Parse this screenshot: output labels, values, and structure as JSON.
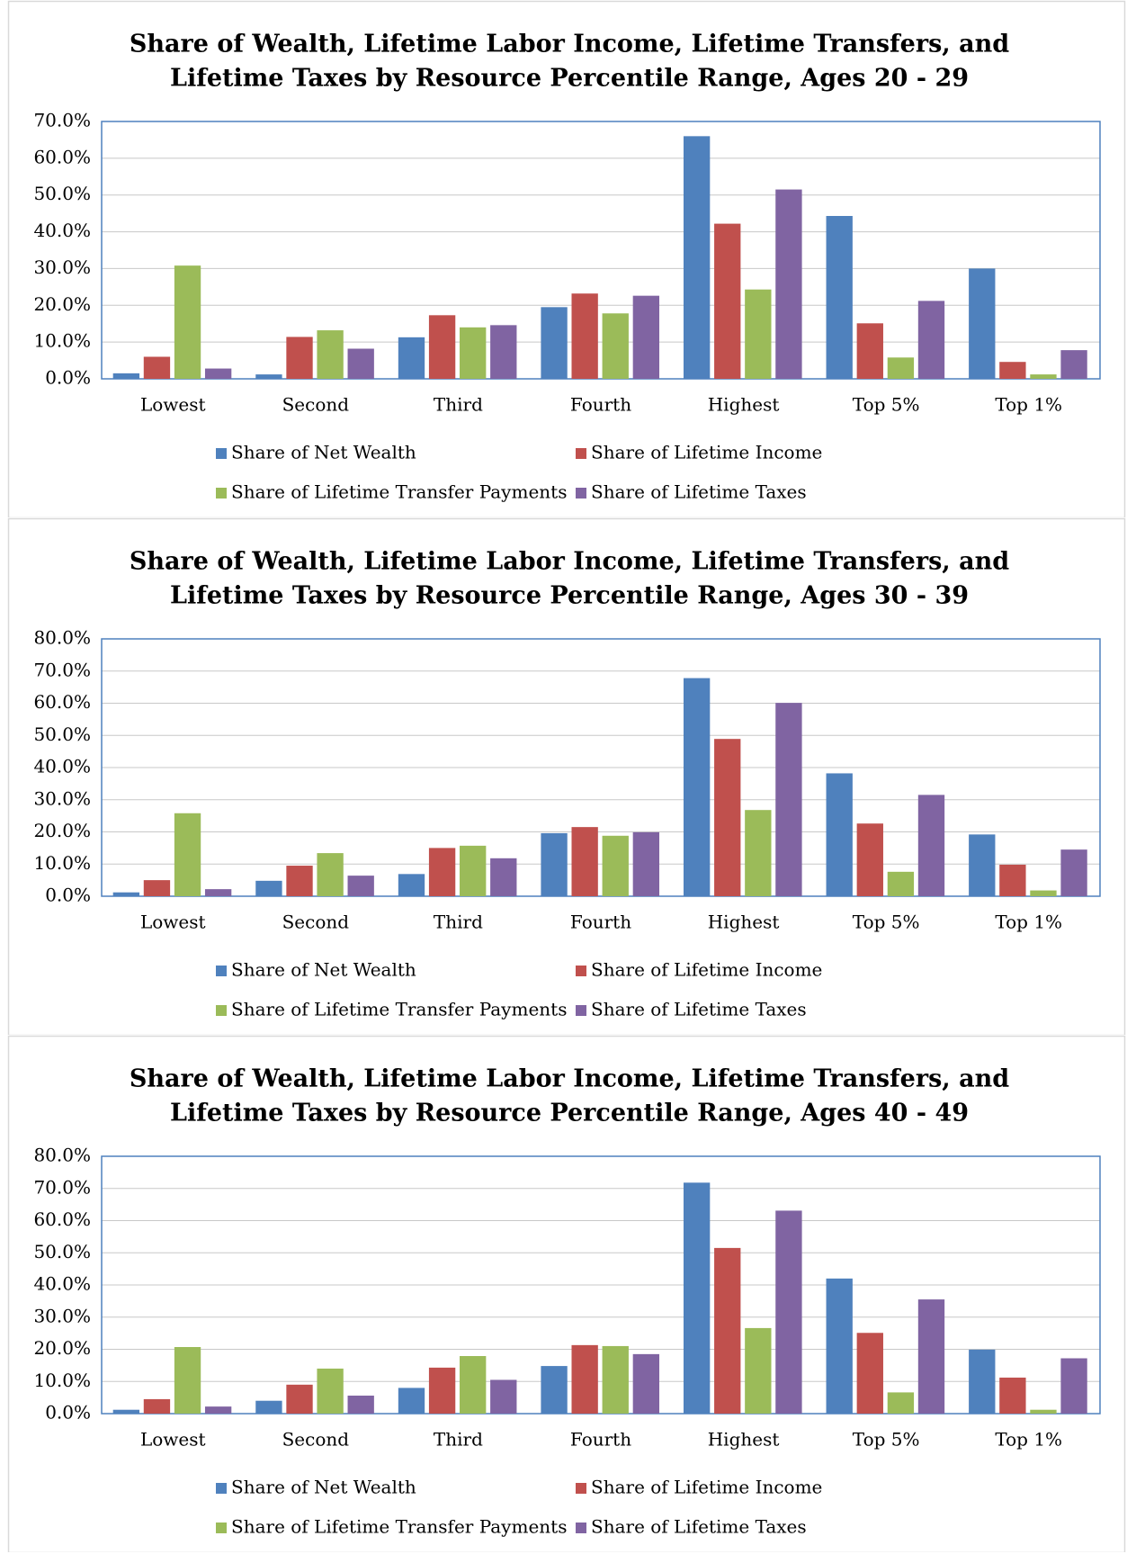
{
  "chart_data": [
    {
      "type": "bar",
      "title": [
        "Share of Wealth, Lifetime Labor Income, Lifetime Transfers, and",
        "Lifetime Taxes by Resource Percentile Range, Ages 20 - 29"
      ],
      "categories": [
        "Lowest",
        "Second",
        "Third",
        "Fourth",
        "Highest",
        "Top 5%",
        "Top 1%"
      ],
      "series": [
        {
          "name": "Share of Net Wealth",
          "color": "#4f81bd",
          "values": [
            1.5,
            1.2,
            11.3,
            19.5,
            66,
            44.3,
            30
          ]
        },
        {
          "name": "Share of Lifetime Income",
          "color": "#c0504d",
          "values": [
            6,
            11.4,
            17.3,
            23.2,
            42.2,
            15.1,
            4.6
          ]
        },
        {
          "name": "Share of Lifetime Transfer Payments",
          "color": "#9bbb59",
          "values": [
            30.8,
            13.2,
            14,
            17.8,
            24.3,
            5.8,
            1.2
          ]
        },
        {
          "name": "Share of Lifetime Taxes",
          "color": "#8064a2",
          "values": [
            2.8,
            8.2,
            14.6,
            22.6,
            51.5,
            21.2,
            7.8
          ]
        }
      ],
      "ylim": [
        0,
        70
      ],
      "yticks": [
        {
          "value": 0,
          "label": "0.0%"
        },
        {
          "value": 10,
          "label": "10.0%"
        },
        {
          "value": 20,
          "label": "20.0%"
        },
        {
          "value": 30,
          "label": "30.0%"
        },
        {
          "value": 40,
          "label": "40.0%"
        },
        {
          "value": 50,
          "label": "50.0%"
        },
        {
          "value": 60,
          "label": "60.0%"
        },
        {
          "value": 70,
          "label": "70.0%"
        }
      ],
      "grid": true,
      "legend": "bottom"
    },
    {
      "type": "bar",
      "title": [
        "Share of Wealth, Lifetime Labor Income, Lifetime Transfers, and",
        "Lifetime Taxes by Resource Percentile Range, Ages 30 - 39"
      ],
      "categories": [
        "Lowest",
        "Second",
        "Third",
        "Fourth",
        "Highest",
        "Top 5%",
        "Top 1%"
      ],
      "series": [
        {
          "name": "Share of Net Wealth",
          "color": "#4f81bd",
          "values": [
            1.2,
            4.8,
            6.9,
            19.6,
            67.8,
            38.2,
            19.2
          ]
        },
        {
          "name": "Share of Lifetime Income",
          "color": "#c0504d",
          "values": [
            5,
            9.5,
            15,
            21.5,
            48.9,
            22.6,
            9.8
          ]
        },
        {
          "name": "Share of Lifetime Transfer Payments",
          "color": "#9bbb59",
          "values": [
            25.8,
            13.4,
            15.7,
            18.8,
            26.8,
            7.6,
            1.8
          ]
        },
        {
          "name": "Share of Lifetime Taxes",
          "color": "#8064a2",
          "values": [
            2.2,
            6.4,
            11.8,
            19.9,
            60.1,
            31.5,
            14.5
          ]
        }
      ],
      "ylim": [
        0,
        80
      ],
      "yticks": [
        {
          "value": 0,
          "label": "0.0%"
        },
        {
          "value": 10,
          "label": "10.0%"
        },
        {
          "value": 20,
          "label": "20.0%"
        },
        {
          "value": 30,
          "label": "30.0%"
        },
        {
          "value": 40,
          "label": "40.0%"
        },
        {
          "value": 50,
          "label": "50.0%"
        },
        {
          "value": 60,
          "label": "60.0%"
        },
        {
          "value": 70,
          "label": "70.0%"
        },
        {
          "value": 80,
          "label": "80.0%"
        }
      ],
      "grid": true,
      "legend": "bottom"
    },
    {
      "type": "bar",
      "title": [
        "Share of Wealth, Lifetime Labor Income, Lifetime Transfers, and",
        "Lifetime Taxes by Resource Percentile Range, Ages 40 - 49"
      ],
      "categories": [
        "Lowest",
        "Second",
        "Third",
        "Fourth",
        "Highest",
        "Top 5%",
        "Top 1%"
      ],
      "series": [
        {
          "name": "Share of Net Wealth",
          "color": "#4f81bd",
          "values": [
            1.2,
            4,
            8,
            14.8,
            71.8,
            42,
            19.9
          ]
        },
        {
          "name": "Share of Lifetime Income",
          "color": "#c0504d",
          "values": [
            4.5,
            9,
            14.3,
            21.3,
            51.5,
            25.1,
            11.2
          ]
        },
        {
          "name": "Share of Lifetime Transfer Payments",
          "color": "#9bbb59",
          "values": [
            20.7,
            14,
            17.9,
            21,
            26.6,
            6.6,
            1.2
          ]
        },
        {
          "name": "Share of Lifetime Taxes",
          "color": "#8064a2",
          "values": [
            2.2,
            5.6,
            10.5,
            18.5,
            63.1,
            35.5,
            17.2
          ]
        }
      ],
      "ylim": [
        0,
        80
      ],
      "yticks": [
        {
          "value": 0,
          "label": "0.0%"
        },
        {
          "value": 10,
          "label": "10.0%"
        },
        {
          "value": 20,
          "label": "20.0%"
        },
        {
          "value": 30,
          "label": "30.0%"
        },
        {
          "value": 40,
          "label": "40.0%"
        },
        {
          "value": 50,
          "label": "50.0%"
        },
        {
          "value": 60,
          "label": "60.0%"
        },
        {
          "value": 70,
          "label": "70.0%"
        },
        {
          "value": 80,
          "label": "80.0%"
        }
      ],
      "grid": true,
      "legend": "bottom"
    }
  ]
}
